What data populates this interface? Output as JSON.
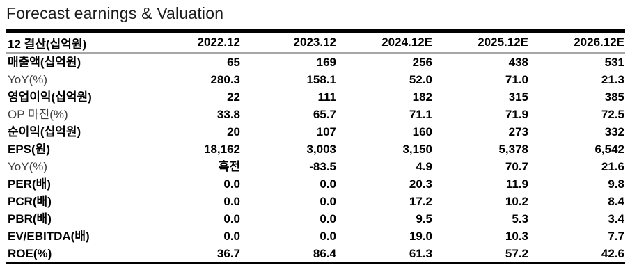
{
  "title": "Forecast earnings & Valuation",
  "colors": {
    "heavy_border": "#000000",
    "header_rule": "#a6a6a6",
    "title_text": "#1b1b1b",
    "value_text": "#000000",
    "secondary_label_text": "#3d3d3d"
  },
  "chart_data": {
    "type": "table",
    "title": "Forecast earnings & Valuation",
    "columns": [
      "12 결산(십억원)",
      "2022.12",
      "2023.12",
      "2024.12E",
      "2025.12E",
      "2026.12E"
    ],
    "rows": [
      {
        "label": "매출액(십억원)",
        "bold": true,
        "values": [
          "65",
          "169",
          "256",
          "438",
          "531"
        ]
      },
      {
        "label": "YoY(%)",
        "bold": false,
        "values": [
          "280.3",
          "158.1",
          "52.0",
          "71.0",
          "21.3"
        ]
      },
      {
        "label": "영업이익(십억원)",
        "bold": true,
        "values": [
          "22",
          "111",
          "182",
          "315",
          "385"
        ]
      },
      {
        "label": "OP 마진(%)",
        "bold": false,
        "values": [
          "33.8",
          "65.7",
          "71.1",
          "71.9",
          "72.5"
        ]
      },
      {
        "label": "순이익(십억원)",
        "bold": true,
        "values": [
          "20",
          "107",
          "160",
          "273",
          "332"
        ]
      },
      {
        "label": "EPS(원)",
        "bold": true,
        "values": [
          "18,162",
          "3,003",
          "3,150",
          "5,378",
          "6,542"
        ]
      },
      {
        "label": "YoY(%)",
        "bold": false,
        "values": [
          "흑전",
          "-83.5",
          "4.9",
          "70.7",
          "21.6"
        ]
      },
      {
        "label": "PER(배)",
        "bold": true,
        "values": [
          "0.0",
          "0.0",
          "20.3",
          "11.9",
          "9.8"
        ]
      },
      {
        "label": "PCR(배)",
        "bold": true,
        "values": [
          "0.0",
          "0.0",
          "17.2",
          "10.2",
          "8.4"
        ]
      },
      {
        "label": "PBR(배)",
        "bold": true,
        "values": [
          "0.0",
          "0.0",
          "9.5",
          "5.3",
          "3.4"
        ]
      },
      {
        "label": "EV/EBITDA(배)",
        "bold": true,
        "values": [
          "0.0",
          "0.0",
          "19.0",
          "10.3",
          "7.7"
        ]
      },
      {
        "label": "ROE(%)",
        "bold": true,
        "values": [
          "36.7",
          "86.4",
          "61.3",
          "57.2",
          "42.6"
        ]
      }
    ]
  }
}
